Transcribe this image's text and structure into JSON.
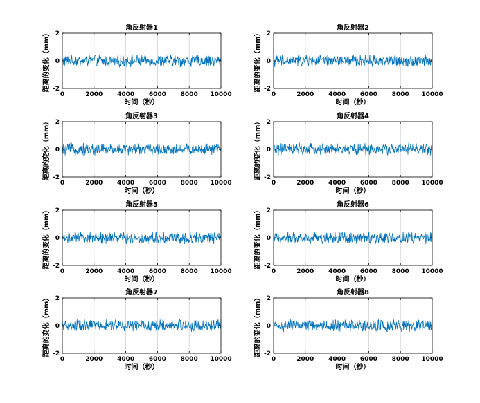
{
  "figure": {
    "background": "#ffffff",
    "series_color": "#0072BD",
    "grid_color": "#d0d0d0"
  },
  "chart_data": [
    {
      "type": "line",
      "title": "角反射器1",
      "xlabel": "时间（秒）",
      "ylabel": "距离的变化（mm）",
      "xlim": [
        0,
        10000
      ],
      "ylim": [
        -2,
        2
      ],
      "xticks": [
        0,
        2000,
        4000,
        6000,
        8000,
        10000
      ],
      "yticks": [
        -2,
        0,
        2
      ],
      "x_gridlines": [
        2000,
        4000,
        6000,
        8000
      ],
      "grid": true,
      "series": [
        {
          "description": "dense noise around 0",
          "approx_range": [
            -0.45,
            0.45
          ],
          "n_points": 400
        }
      ]
    },
    {
      "type": "line",
      "title": "角反射器2",
      "xlabel": "时间（秒）",
      "ylabel": "距离的变化（mm）",
      "xlim": [
        0,
        10000
      ],
      "ylim": [
        -2,
        2
      ],
      "xticks": [
        0,
        2000,
        4000,
        6000,
        8000,
        10000
      ],
      "yticks": [
        -2,
        0,
        2
      ],
      "x_gridlines": [
        2000,
        4000,
        6000,
        8000
      ],
      "grid": true,
      "series": [
        {
          "description": "dense noise around 0",
          "approx_range": [
            -0.45,
            0.45
          ],
          "n_points": 400
        }
      ]
    },
    {
      "type": "line",
      "title": "角反射器3",
      "xlabel": "时间（秒）",
      "ylabel": "距离的变化（mm）",
      "xlim": [
        0,
        10000
      ],
      "ylim": [
        -2,
        2
      ],
      "xticks": [
        0,
        2000,
        4000,
        6000,
        8000,
        10000
      ],
      "yticks": [
        -2,
        0,
        2
      ],
      "x_gridlines": [
        2000,
        4000,
        6000,
        8000
      ],
      "grid": true,
      "series": [
        {
          "description": "dense noise around 0",
          "approx_range": [
            -0.5,
            0.5
          ],
          "n_points": 400
        }
      ]
    },
    {
      "type": "line",
      "title": "角反射器4",
      "xlabel": "时间（秒）",
      "ylabel": "距离的变化（mm）",
      "xlim": [
        0,
        10000
      ],
      "ylim": [
        -2,
        2
      ],
      "xticks": [
        0,
        2000,
        4000,
        6000,
        8000,
        10000
      ],
      "yticks": [
        -2,
        0,
        2
      ],
      "x_gridlines": [
        2000,
        4000,
        6000,
        8000
      ],
      "grid": true,
      "series": [
        {
          "description": "dense noise around 0",
          "approx_range": [
            -0.5,
            0.5
          ],
          "n_points": 400
        }
      ]
    },
    {
      "type": "line",
      "title": "角反射器5",
      "xlabel": "时间（秒）",
      "ylabel": "距离的变化（mm）",
      "xlim": [
        0,
        10000
      ],
      "ylim": [
        -2,
        2
      ],
      "xticks": [
        0,
        2000,
        4000,
        6000,
        8000,
        10000
      ],
      "yticks": [
        -2,
        0,
        2
      ],
      "x_gridlines": [
        2000,
        4000,
        6000,
        8000
      ],
      "grid": true,
      "series": [
        {
          "description": "dense noise around 0",
          "approx_range": [
            -0.45,
            0.45
          ],
          "n_points": 400
        }
      ]
    },
    {
      "type": "line",
      "title": "角反射器6",
      "xlabel": "时间（秒）",
      "ylabel": "距离的变化（mm）",
      "xlim": [
        0,
        10000
      ],
      "ylim": [
        -2,
        2
      ],
      "xticks": [
        0,
        2000,
        4000,
        6000,
        8000,
        10000
      ],
      "yticks": [
        -2,
        0,
        2
      ],
      "x_gridlines": [
        2000,
        4000,
        6000,
        8000
      ],
      "grid": true,
      "series": [
        {
          "description": "dense noise around 0",
          "approx_range": [
            -0.45,
            0.45
          ],
          "n_points": 400
        }
      ]
    },
    {
      "type": "line",
      "title": "角反射器7",
      "xlabel": "时间（秒）",
      "ylabel": "距离的变化（mm）",
      "xlim": [
        0,
        10000
      ],
      "ylim": [
        -2,
        2
      ],
      "xticks": [
        0,
        2000,
        4000,
        6000,
        8000,
        10000
      ],
      "yticks": [
        -2,
        0,
        2
      ],
      "x_gridlines": [
        2000,
        4000,
        6000,
        8000
      ],
      "grid": true,
      "series": [
        {
          "description": "dense noise around 0",
          "approx_range": [
            -0.5,
            0.5
          ],
          "n_points": 400
        }
      ]
    },
    {
      "type": "line",
      "title": "角反射器8",
      "xlabel": "时间（秒）",
      "ylabel": "距离的变化（mm）",
      "xlim": [
        0,
        10000
      ],
      "ylim": [
        -2,
        2
      ],
      "xticks": [
        0,
        2000,
        4000,
        6000,
        8000,
        10000
      ],
      "yticks": [
        -2,
        0,
        2
      ],
      "x_gridlines": [
        2000,
        4000,
        6000,
        8000
      ],
      "grid": true,
      "series": [
        {
          "description": "dense noise around 0",
          "approx_range": [
            -0.45,
            0.45
          ],
          "n_points": 400
        }
      ]
    }
  ]
}
